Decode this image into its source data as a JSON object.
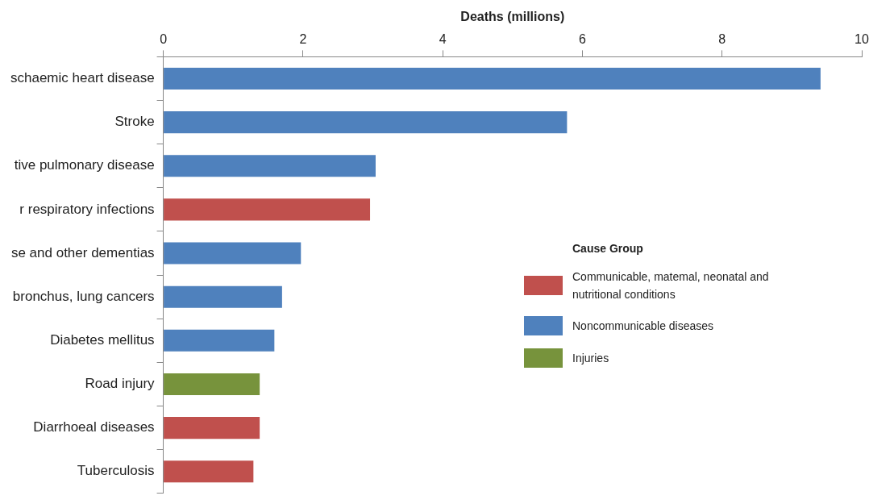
{
  "chart_data": {
    "type": "bar",
    "orientation": "horizontal",
    "stacked": true,
    "xlabel": "Deaths (millions)",
    "legend_title": "Cause Group",
    "legend": "bottom right",
    "grid": false,
    "categories": [
      "schaemic heart disease",
      "Stroke",
      "tive pulmonary disease",
      "r respiratory infections",
      "se and other dementias",
      "bronchus, lung cancers",
      "Diabetes mellitus",
      "Road injury",
      "Diarrhoeal diseases",
      "Tuberculosis"
    ],
    "xlim": [
      0,
      10
    ],
    "xticks": [
      0,
      2,
      4,
      6,
      8,
      10
    ],
    "series": [
      {
        "name": "Communicable, matemal, neonatal and nutritional conditions",
        "color": "#c0504d",
        "values": [
          null,
          null,
          null,
          2.96,
          null,
          null,
          null,
          null,
          1.38,
          1.29
        ]
      },
      {
        "name": "Noncommunicable diseases",
        "color": "#4f81bd",
        "values": [
          9.41,
          5.78,
          3.04,
          null,
          1.97,
          1.7,
          1.59,
          null,
          null,
          null
        ]
      },
      {
        "name": "Injuries",
        "color": "#77933c",
        "values": [
          null,
          null,
          null,
          null,
          null,
          null,
          null,
          1.38,
          null,
          null
        ]
      }
    ]
  }
}
